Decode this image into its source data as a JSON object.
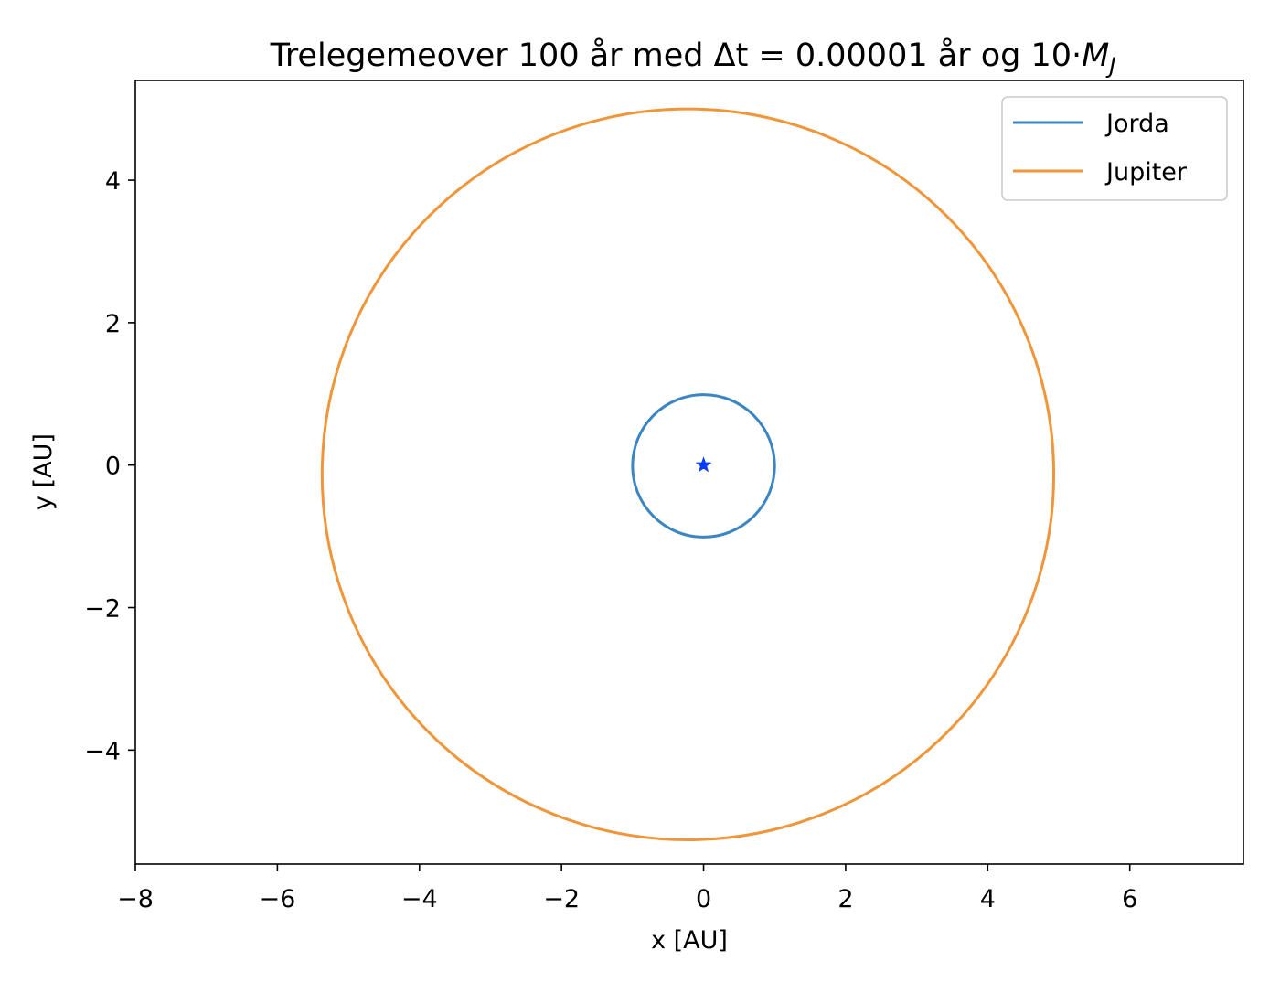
{
  "chart_data": {
    "type": "line",
    "title": "Trelegemeover 100 år med Δt = 0.00001 år og 10·",
    "title_math": "M",
    "title_math_sub": "J",
    "xlabel": "x [AU]",
    "ylabel": "y [AU]",
    "xlim": [
      -8,
      7.6
    ],
    "ylim": [
      -5.6,
      5.4
    ],
    "xticks": [
      -8,
      -6,
      -4,
      -2,
      0,
      2,
      4,
      6
    ],
    "yticks": [
      -4,
      -2,
      0,
      2,
      4
    ],
    "xtick_labels": [
      "−8",
      "−6",
      "−4",
      "−2",
      "0",
      "2",
      "4",
      "6"
    ],
    "ytick_labels": [
      "−4",
      "−2",
      "0",
      "2",
      "4"
    ],
    "grid": false,
    "legend_position": "top-right",
    "series": [
      {
        "name": "Jorda",
        "color": "#3b85c2",
        "orbit": {
          "cx": 0.0,
          "cy": -0.01,
          "rx": 1.0,
          "ry": 1.0
        }
      },
      {
        "name": "Jupiter",
        "color": "#f0963a",
        "orbit": {
          "cx": -0.22,
          "cy": -0.13,
          "rx": 5.15,
          "ry": 5.13
        }
      }
    ],
    "markers": [
      {
        "symbol": "star",
        "color": "#0a3cff",
        "x": 0.0,
        "y": 0.0
      }
    ]
  }
}
